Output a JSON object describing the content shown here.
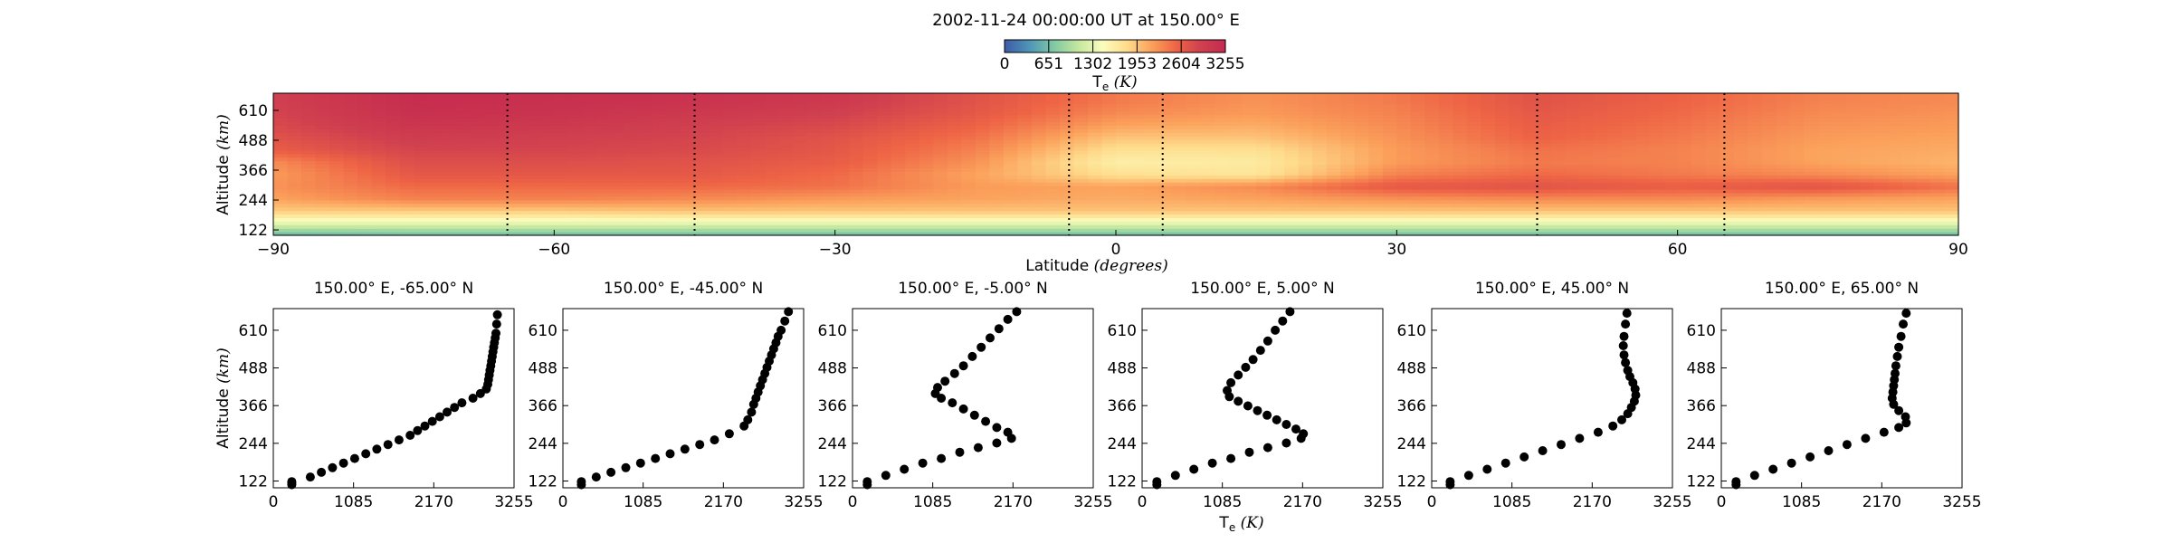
{
  "title": "2002-11-24 00:00:00 UT at 150.00° E",
  "colors": {
    "colormap": [
      "#3f5ba8",
      "#4d95b8",
      "#80c9a4",
      "#c4e79e",
      "#fbfdbd",
      "#fedb8b",
      "#fba05b",
      "#ee6445",
      "#d0404f",
      "#c52a4f"
    ],
    "marker": "#000000",
    "guide_line": "#000000"
  },
  "colorbar": {
    "ticks": [
      "0",
      "651",
      "1302",
      "1953",
      "2604",
      "3255"
    ],
    "label_main": "T",
    "label_sub": "e",
    "label_unit": "(K)",
    "range": [
      0,
      3255
    ]
  },
  "chart_data": [
    {
      "type": "heatmap",
      "xlabel_main": "Latitude ",
      "xlabel_unit": "(degrees)",
      "ylabel_main": "Altitude ",
      "ylabel_unit": "(km)",
      "xlim": [
        -90,
        90
      ],
      "ylim": [
        100,
        680
      ],
      "xticks": [
        "−90",
        "−60",
        "−30",
        "0",
        "30",
        "60",
        "90"
      ],
      "yticks": [
        "122",
        "244",
        "366",
        "488",
        "610"
      ],
      "latitudes": [
        -90,
        -75,
        -60,
        -45,
        -30,
        -15,
        0,
        15,
        30,
        45,
        60,
        75,
        90
      ],
      "altitudes": [
        100,
        150,
        200,
        250,
        300,
        350,
        400,
        450,
        500,
        550,
        600,
        650
      ],
      "values": [
        [
          550,
          600,
          600,
          600,
          600,
          600,
          600,
          600,
          600,
          600,
          600,
          600,
          600
        ],
        [
          1300,
          1300,
          1300,
          1300,
          1300,
          1300,
          1300,
          1300,
          1300,
          1300,
          1300,
          1300,
          1300
        ],
        [
          1900,
          1900,
          1900,
          1950,
          1950,
          1950,
          1950,
          1950,
          1950,
          1950,
          1950,
          1950,
          1950
        ],
        [
          2150,
          2350,
          2350,
          2300,
          2200,
          2150,
          2100,
          2150,
          2250,
          2300,
          2300,
          2200,
          2150
        ],
        [
          2250,
          2500,
          2500,
          2500,
          2450,
          2200,
          2150,
          2300,
          2650,
          2700,
          2600,
          2700,
          2450
        ],
        [
          2200,
          2650,
          2650,
          2650,
          2500,
          2150,
          1750,
          1700,
          2350,
          2500,
          2400,
          2300,
          2150
        ],
        [
          2300,
          2750,
          2750,
          2700,
          2600,
          2250,
          1600,
          1650,
          2200,
          2400,
          2350,
          2150,
          2050
        ],
        [
          2600,
          2850,
          2850,
          2800,
          2650,
          2350,
          1750,
          1750,
          2200,
          2450,
          2350,
          2150,
          2100
        ],
        [
          2700,
          2950,
          2900,
          2850,
          2700,
          2450,
          1950,
          1950,
          2250,
          2550,
          2400,
          2200,
          2150
        ],
        [
          2800,
          3050,
          3000,
          2900,
          2800,
          2550,
          2150,
          2100,
          2300,
          2600,
          2450,
          2250,
          2200
        ],
        [
          2850,
          3150,
          3100,
          3000,
          2900,
          2650,
          2300,
          2200,
          2350,
          2650,
          2500,
          2300,
          2250
        ],
        [
          2900,
          3200,
          3150,
          3100,
          3000,
          2700,
          2400,
          2250,
          2400,
          2700,
          2550,
          2350,
          2300
        ]
      ],
      "guide_latitudes": [
        -65,
        -45,
        -5,
        5,
        45,
        65
      ]
    },
    {
      "type": "scatter",
      "title": "150.00° E, -65.00° N",
      "xlim": [
        0,
        3255
      ],
      "ylim": [
        100,
        680
      ],
      "xticks": [
        "0",
        "1085",
        "2170",
        "3255"
      ],
      "yticks": [
        "122",
        "244",
        "366",
        "488",
        "610"
      ],
      "ylabel_main": "Altitude ",
      "ylabel_unit": "(km)",
      "x": [
        250,
        250,
        250,
        500,
        650,
        800,
        950,
        1100,
        1250,
        1400,
        1550,
        1700,
        1850,
        1950,
        2050,
        2150,
        2250,
        2350,
        2450,
        2550,
        2700,
        2800,
        2880,
        2900,
        2910,
        2920,
        2930,
        2940,
        2950,
        2960,
        2970,
        2980,
        2990,
        3000,
        3010,
        3020,
        3030
      ],
      "y": [
        110,
        115,
        120,
        135,
        150,
        165,
        180,
        195,
        210,
        225,
        240,
        255,
        270,
        285,
        300,
        315,
        330,
        345,
        360,
        375,
        390,
        405,
        420,
        435,
        450,
        465,
        480,
        495,
        510,
        525,
        540,
        555,
        570,
        585,
        600,
        630,
        660
      ]
    },
    {
      "type": "scatter",
      "title": "150.00° E, -45.00° N",
      "xlim": [
        0,
        3255
      ],
      "ylim": [
        100,
        680
      ],
      "xticks": [
        "0",
        "1085",
        "2170",
        "3255"
      ],
      "yticks": [
        "122",
        "244",
        "366",
        "488",
        "610"
      ],
      "ylabel_main": "",
      "ylabel_unit": "",
      "x": [
        250,
        250,
        450,
        650,
        850,
        1050,
        1250,
        1450,
        1650,
        1850,
        2050,
        2250,
        2450,
        2500,
        2550,
        2580,
        2610,
        2640,
        2670,
        2700,
        2730,
        2760,
        2790,
        2820,
        2850,
        2880,
        2910,
        2950,
        3000,
        3050
      ],
      "y": [
        110,
        120,
        135,
        150,
        165,
        180,
        195,
        210,
        225,
        240,
        255,
        275,
        300,
        320,
        345,
        370,
        390,
        410,
        430,
        450,
        470,
        490,
        510,
        530,
        550,
        570,
        590,
        610,
        640,
        670
      ]
    },
    {
      "type": "scatter",
      "title": "150.00° E, -5.00° N",
      "xlim": [
        0,
        3255
      ],
      "ylim": [
        100,
        680
      ],
      "xticks": [
        "0",
        "1085",
        "2170",
        "3255"
      ],
      "yticks": [
        "122",
        "244",
        "366",
        "488",
        "610"
      ],
      "ylabel_main": "",
      "ylabel_unit": "",
      "x": [
        200,
        200,
        450,
        700,
        950,
        1200,
        1450,
        1700,
        1950,
        2150,
        2100,
        1950,
        1800,
        1650,
        1500,
        1350,
        1200,
        1120,
        1150,
        1250,
        1380,
        1500,
        1620,
        1740,
        1860,
        1980,
        2100,
        2220
      ],
      "y": [
        110,
        120,
        140,
        160,
        180,
        195,
        215,
        230,
        245,
        260,
        280,
        295,
        315,
        335,
        355,
        375,
        390,
        405,
        425,
        445,
        470,
        495,
        525,
        555,
        585,
        615,
        645,
        670
      ]
    },
    {
      "type": "scatter",
      "title": "150.00° E, 5.00° N",
      "xlim": [
        0,
        3255
      ],
      "ylim": [
        100,
        680
      ],
      "xticks": [
        "0",
        "1085",
        "2170",
        "3255"
      ],
      "yticks": [
        "122",
        "244",
        "366",
        "488",
        "610"
      ],
      "ylabel_main": "",
      "ylabel_unit": "",
      "x": [
        200,
        200,
        450,
        700,
        950,
        1200,
        1450,
        1700,
        1950,
        2150,
        2180,
        2080,
        1950,
        1820,
        1690,
        1560,
        1430,
        1300,
        1180,
        1150,
        1200,
        1300,
        1400,
        1500,
        1600,
        1700,
        1800,
        1900,
        2000
      ],
      "y": [
        110,
        120,
        140,
        160,
        180,
        195,
        215,
        230,
        245,
        260,
        275,
        290,
        305,
        320,
        335,
        350,
        365,
        380,
        395,
        415,
        440,
        465,
        490,
        515,
        545,
        575,
        610,
        640,
        670
      ]
    },
    {
      "type": "scatter",
      "title": "150.00° E, 45.00° N",
      "xlim": [
        0,
        3255
      ],
      "ylim": [
        100,
        680
      ],
      "xticks": [
        "0",
        "1085",
        "2170",
        "3255"
      ],
      "yticks": [
        "122",
        "244",
        "366",
        "488",
        "610"
      ],
      "ylabel_main": "",
      "ylabel_unit": "",
      "x": [
        250,
        250,
        500,
        750,
        1000,
        1250,
        1500,
        1750,
        2000,
        2250,
        2450,
        2570,
        2650,
        2700,
        2740,
        2760,
        2750,
        2720,
        2680,
        2650,
        2620,
        2600,
        2590,
        2600,
        2620,
        2640
      ],
      "y": [
        110,
        120,
        140,
        160,
        180,
        200,
        220,
        240,
        260,
        280,
        300,
        320,
        340,
        360,
        380,
        400,
        420,
        440,
        460,
        480,
        505,
        530,
        560,
        590,
        630,
        665
      ]
    },
    {
      "type": "scatter",
      "title": "150.00° E, 65.00° N",
      "xlim": [
        0,
        3255
      ],
      "ylim": [
        100,
        680
      ],
      "xticks": [
        "0",
        "1085",
        "2170",
        "3255"
      ],
      "yticks": [
        "122",
        "244",
        "366",
        "488",
        "610"
      ],
      "ylabel_main": "",
      "ylabel_unit": "",
      "x": [
        200,
        200,
        450,
        700,
        950,
        1200,
        1450,
        1700,
        1950,
        2200,
        2400,
        2500,
        2490,
        2400,
        2330,
        2310,
        2320,
        2330,
        2340,
        2350,
        2360,
        2380,
        2400,
        2430,
        2460,
        2500
      ],
      "y": [
        110,
        120,
        140,
        160,
        180,
        200,
        220,
        240,
        260,
        280,
        295,
        310,
        330,
        350,
        370,
        390,
        410,
        430,
        450,
        470,
        495,
        525,
        555,
        590,
        630,
        665
      ]
    }
  ],
  "shared_xlabel_main": "T",
  "shared_xlabel_sub": "e",
  "shared_xlabel_unit": "(K)"
}
